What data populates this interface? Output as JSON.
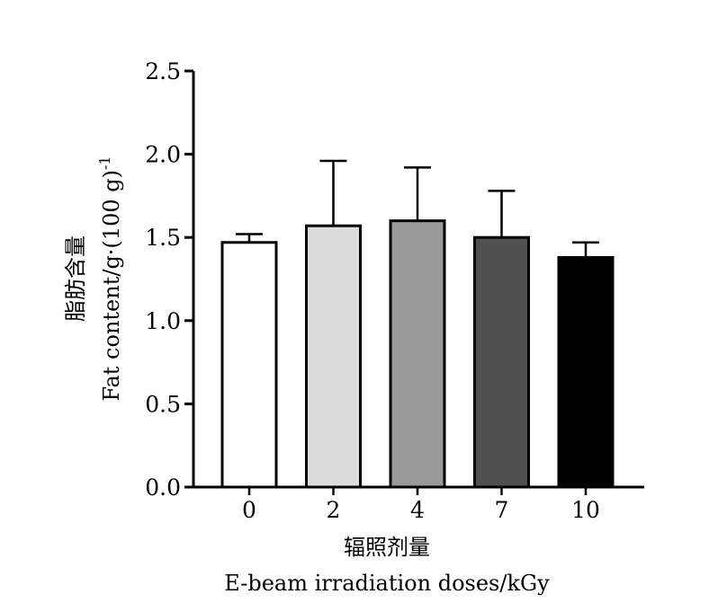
{
  "chart_data": {
    "type": "bar",
    "categories": [
      "0",
      "2",
      "4",
      "7",
      "10"
    ],
    "values": [
      1.47,
      1.57,
      1.6,
      1.5,
      1.38
    ],
    "error_upper": [
      1.52,
      1.96,
      1.92,
      1.78,
      1.47
    ],
    "bar_colors": [
      "#ffffff",
      "#dcdcdc",
      "#999999",
      "#505050",
      "#000000"
    ],
    "ylim": [
      0,
      2.5
    ],
    "yticks": [
      "0.0",
      "0.5",
      "1.0",
      "1.5",
      "2.0",
      "2.5"
    ],
    "ytick_values": [
      0,
      0.5,
      1.0,
      1.5,
      2.0,
      2.5
    ],
    "xlabel_cn": "辐照剂量",
    "xlabel_en": "E-beam irradiation doses/kGy",
    "ylabel_cn": "脂肪含量",
    "ylabel_en": "Fat  content/g·(100 g)",
    "ylabel_sup": "-1",
    "grid": false,
    "legend": "none"
  }
}
